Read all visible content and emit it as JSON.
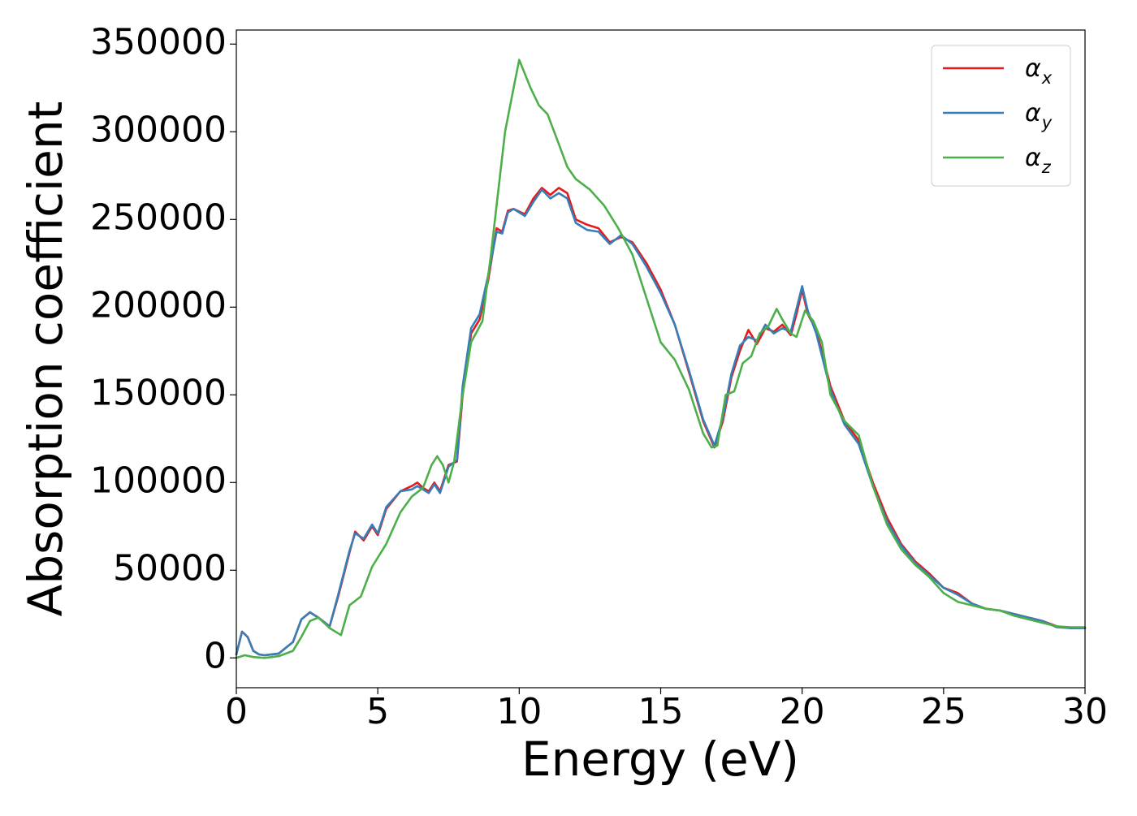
{
  "chart_data": {
    "type": "line",
    "xlabel": "Energy (eV)",
    "ylabel": "Absorption coefficient",
    "xlim": [
      0,
      30
    ],
    "ylim": [
      -17000,
      358000
    ],
    "xticks": [
      0,
      5,
      10,
      15,
      20,
      25,
      30
    ],
    "xtick_labels": [
      "0",
      "5",
      "10",
      "15",
      "20",
      "25",
      "30"
    ],
    "yticks": [
      0,
      50000,
      100000,
      150000,
      200000,
      250000,
      300000,
      350000
    ],
    "ytick_labels": [
      "0",
      "50000",
      "100000",
      "150000",
      "200000",
      "250000",
      "300000",
      "350000"
    ],
    "grid": false,
    "legend_position": "top-right",
    "series": [
      {
        "name": "αx",
        "legend_symbol": "α",
        "legend_subscript": "x",
        "color": "#e41a1c",
        "x": [
          0,
          0.2,
          0.4,
          0.6,
          0.8,
          1.0,
          1.5,
          2.0,
          2.3,
          2.6,
          2.9,
          3.3,
          3.6,
          4.0,
          4.2,
          4.5,
          4.8,
          5.0,
          5.3,
          5.8,
          6.2,
          6.4,
          6.6,
          6.8,
          7.0,
          7.2,
          7.5,
          7.8,
          8.0,
          8.3,
          8.6,
          8.9,
          9.2,
          9.4,
          9.6,
          9.8,
          10.2,
          10.5,
          10.8,
          11.1,
          11.4,
          11.7,
          12.0,
          12.4,
          12.8,
          13.2,
          13.6,
          14.0,
          14.5,
          15.0,
          15.5,
          16.0,
          16.5,
          16.9,
          17.2,
          17.5,
          17.8,
          18.1,
          18.4,
          18.7,
          19.0,
          19.3,
          19.6,
          19.8,
          20.0,
          20.2,
          20.5,
          21.0,
          21.5,
          22.0,
          22.5,
          23.0,
          23.5,
          24.0,
          24.5,
          25.0,
          25.5,
          26.0,
          26.5,
          27.0,
          27.5,
          28.0,
          28.5,
          29.0,
          29.5,
          30.0
        ],
        "y": [
          2000,
          15000,
          12000,
          4000,
          2000,
          1500,
          2500,
          9000,
          22000,
          26000,
          23000,
          18000,
          35000,
          60000,
          72000,
          67000,
          75000,
          70000,
          85000,
          95000,
          98000,
          100000,
          97000,
          95000,
          100000,
          95000,
          110000,
          112000,
          150000,
          185000,
          193000,
          215000,
          245000,
          243000,
          255000,
          256000,
          253000,
          262000,
          268000,
          264000,
          268000,
          265000,
          250000,
          247000,
          245000,
          237000,
          240000,
          237000,
          225000,
          210000,
          190000,
          163000,
          135000,
          120000,
          135000,
          160000,
          175000,
          187000,
          179000,
          188000,
          186000,
          190000,
          184000,
          196000,
          210000,
          196000,
          187000,
          155000,
          135000,
          124000,
          100000,
          80000,
          65000,
          55000,
          48000,
          40000,
          37000,
          31000,
          28000,
          27000,
          25000,
          23000,
          21000,
          18000,
          17000,
          17000
        ]
      },
      {
        "name": "αy",
        "legend_symbol": "α",
        "legend_subscript": "y",
        "color": "#377eb8",
        "x": [
          0,
          0.2,
          0.4,
          0.6,
          0.8,
          1.0,
          1.5,
          2.0,
          2.3,
          2.6,
          2.9,
          3.3,
          3.6,
          4.0,
          4.2,
          4.5,
          4.8,
          5.0,
          5.3,
          5.8,
          6.2,
          6.4,
          6.6,
          6.8,
          7.0,
          7.2,
          7.5,
          7.8,
          8.0,
          8.3,
          8.6,
          8.9,
          9.2,
          9.4,
          9.6,
          9.8,
          10.2,
          10.5,
          10.8,
          11.1,
          11.4,
          11.7,
          12.0,
          12.4,
          12.8,
          13.2,
          13.6,
          14.0,
          14.5,
          15.0,
          15.5,
          16.0,
          16.5,
          16.9,
          17.2,
          17.5,
          17.8,
          18.1,
          18.4,
          18.7,
          19.0,
          19.3,
          19.6,
          19.8,
          20.0,
          20.2,
          20.5,
          21.0,
          21.5,
          22.0,
          22.5,
          23.0,
          23.5,
          24.0,
          24.5,
          25.0,
          25.5,
          26.0,
          26.5,
          27.0,
          27.5,
          28.0,
          28.5,
          29.0,
          29.5,
          30.0
        ],
        "y": [
          2000,
          15000,
          12000,
          4000,
          2000,
          1500,
          2500,
          9000,
          22000,
          26000,
          23000,
          18000,
          36000,
          61000,
          71000,
          68000,
          76000,
          71000,
          86000,
          95000,
          96000,
          98000,
          96000,
          94000,
          99000,
          94000,
          109000,
          113000,
          155000,
          188000,
          196000,
          218000,
          243000,
          242000,
          254000,
          256000,
          252000,
          260000,
          267000,
          262000,
          265000,
          262000,
          248000,
          244000,
          243000,
          236000,
          241000,
          236000,
          223000,
          208000,
          190000,
          164000,
          136000,
          121000,
          137000,
          162000,
          178000,
          183000,
          181000,
          190000,
          185000,
          188000,
          186000,
          199000,
          212000,
          198000,
          185000,
          153000,
          133000,
          122000,
          98000,
          78000,
          64000,
          54000,
          47000,
          40000,
          36000,
          31000,
          28000,
          27000,
          25000,
          23000,
          21000,
          17500,
          17000,
          17000
        ]
      },
      {
        "name": "αz",
        "legend_symbol": "α",
        "legend_subscript": "z",
        "color": "#4daf4a",
        "x": [
          0,
          0.3,
          0.6,
          1.0,
          1.5,
          2.0,
          2.3,
          2.6,
          2.9,
          3.3,
          3.7,
          4.0,
          4.4,
          4.8,
          5.3,
          5.8,
          6.2,
          6.6,
          6.9,
          7.1,
          7.3,
          7.5,
          7.7,
          8.0,
          8.3,
          8.7,
          9.0,
          9.5,
          9.8,
          10.0,
          10.2,
          10.4,
          10.7,
          11.0,
          11.4,
          11.7,
          12.0,
          12.5,
          13.0,
          13.5,
          14.0,
          14.5,
          15.0,
          15.5,
          16.0,
          16.5,
          16.8,
          17.0,
          17.3,
          17.6,
          17.9,
          18.2,
          18.5,
          18.8,
          19.1,
          19.3,
          19.6,
          19.8,
          20.1,
          20.4,
          20.7,
          21.0,
          21.5,
          22.0,
          22.5,
          23.0,
          23.5,
          24.0,
          24.5,
          25.0,
          25.5,
          26.0,
          26.5,
          27.0,
          27.5,
          28.0,
          28.5,
          29.0,
          29.5,
          30.0
        ],
        "y": [
          0,
          1500,
          500,
          0,
          1000,
          4000,
          12000,
          21000,
          23000,
          17000,
          13000,
          30000,
          35000,
          52000,
          65000,
          83000,
          92000,
          97000,
          110000,
          115000,
          110000,
          100000,
          112000,
          150000,
          180000,
          192000,
          230000,
          300000,
          325000,
          341000,
          333000,
          325000,
          315000,
          310000,
          293000,
          280000,
          273000,
          267000,
          258000,
          245000,
          230000,
          205000,
          180000,
          170000,
          153000,
          128000,
          120000,
          121000,
          150000,
          152000,
          168000,
          172000,
          185000,
          189000,
          199000,
          193000,
          185000,
          183000,
          198000,
          192000,
          180000,
          150000,
          135000,
          127000,
          98000,
          76000,
          62000,
          53000,
          46000,
          37000,
          32000,
          30000,
          28000,
          27000,
          24000,
          22000,
          20000,
          18000,
          17500,
          17500
        ]
      }
    ]
  }
}
